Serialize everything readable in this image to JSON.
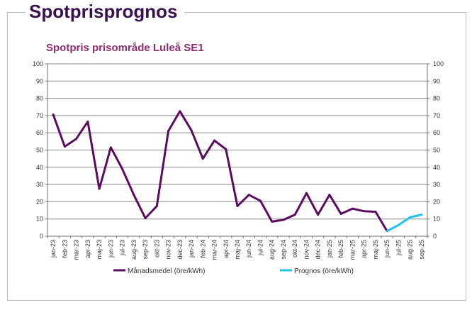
{
  "page": {
    "title": "Spotprisprognos"
  },
  "chart_data": {
    "type": "line",
    "title": "Spotpris prisområde Luleå SE1",
    "xlabel": "",
    "ylabel": "",
    "ylim": [
      0,
      100
    ],
    "yticks": [
      0,
      10,
      20,
      30,
      40,
      50,
      60,
      70,
      80,
      90,
      100
    ],
    "grid": true,
    "secondary_y_axis": true,
    "legend_position": "bottom",
    "categories": [
      "jan-23",
      "feb-23",
      "mar-23",
      "apr-23",
      "maj-23",
      "jun-23",
      "jul-23",
      "aug-23",
      "sep-23",
      "okt-23",
      "nov-23",
      "dec-23",
      "jan-24",
      "feb-24",
      "mar-24",
      "apr-24",
      "maj-24",
      "jun-24",
      "jul-24",
      "aug-24",
      "sep-24",
      "okt-24",
      "nov-24",
      "dec-24",
      "jan-25",
      "feb-25",
      "mar-25",
      "apr-25",
      "maj-25",
      "jun-25",
      "jul-25",
      "aug-25",
      "sep-25"
    ],
    "series": [
      {
        "name": "Månadsmedel (öre/kWh)",
        "color": "#5b0c62",
        "values": [
          70.5,
          52,
          56.5,
          66.5,
          27.5,
          51.5,
          39,
          24,
          10.5,
          17.5,
          61,
          72.5,
          61.5,
          45,
          55.5,
          50.5,
          17.5,
          24,
          20.5,
          8.5,
          9.5,
          12.5,
          25,
          12.5,
          24,
          13,
          16,
          14.5,
          14.2,
          3,
          null,
          null,
          null
        ]
      },
      {
        "name": "Prognos (öre/kWh)",
        "color": "#21c3e8",
        "values": [
          null,
          null,
          null,
          null,
          null,
          null,
          null,
          null,
          null,
          null,
          null,
          null,
          null,
          null,
          null,
          null,
          null,
          null,
          null,
          null,
          null,
          null,
          null,
          null,
          null,
          null,
          null,
          null,
          null,
          3,
          6.5,
          11,
          12.5
        ]
      }
    ]
  }
}
